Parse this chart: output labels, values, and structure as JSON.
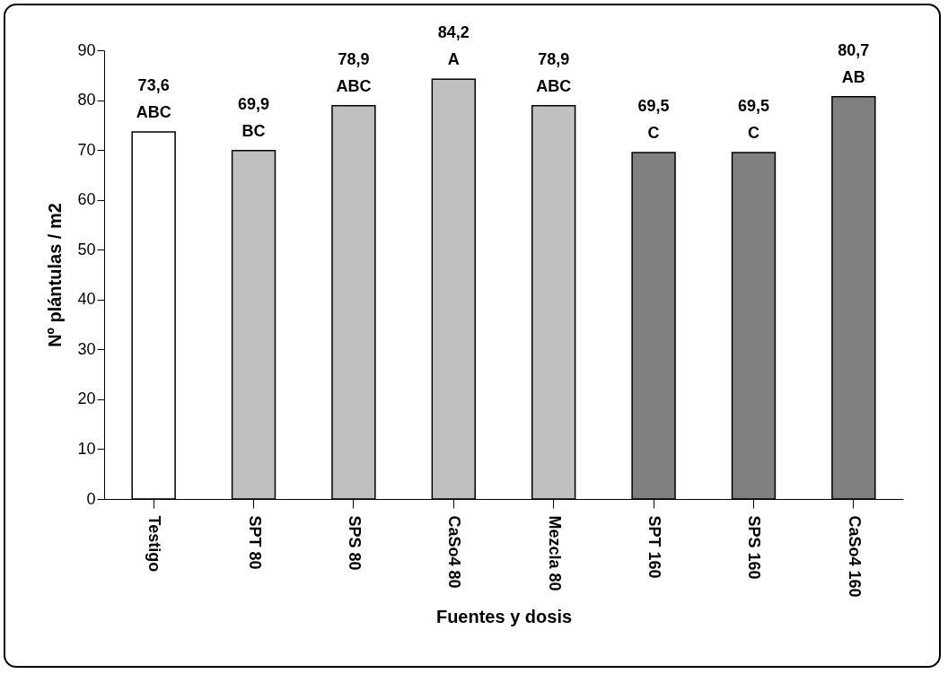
{
  "chart_data": {
    "type": "bar",
    "xlabel": "Fuentes y dosis",
    "ylabel": "Nº plántulas / m2",
    "categories": [
      "Testigo",
      "SPT 80",
      "SPS 80",
      "CaSo4 80",
      "Mezcla 80",
      "SPT 160",
      "SPS 160",
      "CaSo4 160"
    ],
    "values": [
      73.6,
      69.9,
      78.9,
      84.2,
      78.9,
      69.5,
      69.5,
      80.7
    ],
    "value_labels": [
      "73,6",
      "69,9",
      "78,9",
      "84,2",
      "78,9",
      "69,5",
      "69,5",
      "80,7"
    ],
    "colors": [
      "#ffffff",
      "#c0c0c0",
      "#c0c0c0",
      "#c0c0c0",
      "#c0c0c0",
      "#808080",
      "#808080",
      "#808080"
    ],
    "annotations": [
      {
        "text": "ABC",
        "x": "Testigo",
        "y": 73.6
      },
      {
        "text": "BC",
        "x": "SPT 80",
        "y": 69.9
      },
      {
        "text": "ABC",
        "x": "SPS 80",
        "y": 78.9
      },
      {
        "text": "A",
        "x": "CaSo4 80",
        "y": 84.2
      },
      {
        "text": "ABC",
        "x": "Mezcla 80",
        "y": 78.9
      },
      {
        "text": "C",
        "x": "SPT 160",
        "y": 69.5
      },
      {
        "text": "C",
        "x": "SPS 160",
        "y": 69.5
      },
      {
        "text": "AB",
        "x": "CaSo4 160",
        "y": 80.7
      }
    ],
    "ylim": [
      0,
      90
    ],
    "yticks": [
      0,
      10,
      20,
      30,
      40,
      50,
      60,
      70,
      80,
      90
    ],
    "grid": false
  }
}
